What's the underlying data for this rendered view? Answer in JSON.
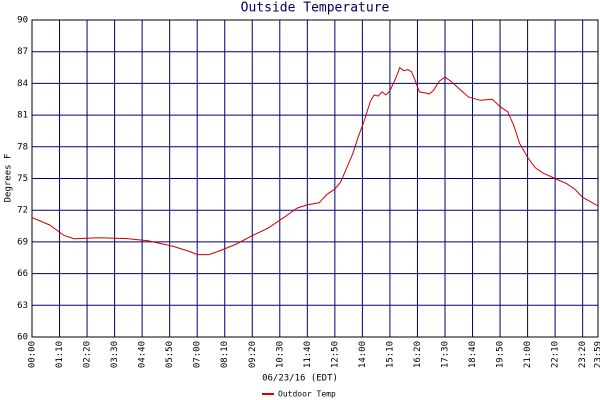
{
  "chart_data": {
    "type": "line",
    "title": "Outside Temperature",
    "x_label": "06/23/16 (EDT)",
    "y_label": "Degrees F",
    "x": [
      0,
      45,
      82,
      107,
      170,
      245,
      295,
      357,
      400,
      420,
      450,
      480,
      520,
      560,
      600,
      640,
      674,
      700,
      730,
      750,
      770,
      785,
      800,
      815,
      830,
      845,
      860,
      870,
      880,
      890,
      900,
      910,
      925,
      935,
      945,
      955,
      965,
      975,
      985,
      1000,
      1010,
      1020,
      1035,
      1050,
      1065,
      1080,
      1095,
      1110,
      1140,
      1170,
      1190,
      1210,
      1225,
      1240,
      1260,
      1280,
      1300,
      1330,
      1360,
      1380,
      1400,
      1420,
      1439
    ],
    "series": [
      {
        "name": "Outdoor Temp",
        "color": "#cc0000",
        "values": [
          71.3,
          70.6,
          69.6,
          69.3,
          69.4,
          69.3,
          69.1,
          68.6,
          68.1,
          67.8,
          67.8,
          68.2,
          68.8,
          69.6,
          70.3,
          71.3,
          72.2,
          72.5,
          72.7,
          73.5,
          74.0,
          74.7,
          76.0,
          77.3,
          79.0,
          80.5,
          82.3,
          82.9,
          82.8,
          83.2,
          82.9,
          83.3,
          84.5,
          85.5,
          85.2,
          85.3,
          85.1,
          84.2,
          83.2,
          83.1,
          83.0,
          83.3,
          84.2,
          84.6,
          84.2,
          83.7,
          83.2,
          82.7,
          82.4,
          82.5,
          81.8,
          81.3,
          80.0,
          78.3,
          77.0,
          76.0,
          75.5,
          75.0,
          74.5,
          74.0,
          73.2,
          72.8,
          72.4
        ]
      }
    ],
    "xlim": [
      0,
      1439
    ],
    "xticks": [
      {
        "value": 0,
        "label": "00:00"
      },
      {
        "value": 70,
        "label": "01:10"
      },
      {
        "value": 140,
        "label": "02:20"
      },
      {
        "value": 210,
        "label": "03:30"
      },
      {
        "value": 280,
        "label": "04:40"
      },
      {
        "value": 350,
        "label": "05:50"
      },
      {
        "value": 420,
        "label": "07:00"
      },
      {
        "value": 490,
        "label": "08:10"
      },
      {
        "value": 560,
        "label": "09:20"
      },
      {
        "value": 630,
        "label": "10:30"
      },
      {
        "value": 700,
        "label": "11:40"
      },
      {
        "value": 770,
        "label": "12:50"
      },
      {
        "value": 840,
        "label": "14:00"
      },
      {
        "value": 910,
        "label": "15:10"
      },
      {
        "value": 980,
        "label": "16:20"
      },
      {
        "value": 1050,
        "label": "17:30"
      },
      {
        "value": 1120,
        "label": "18:40"
      },
      {
        "value": 1190,
        "label": "19:50"
      },
      {
        "value": 1260,
        "label": "21:00"
      },
      {
        "value": 1330,
        "label": "22:10"
      },
      {
        "value": 1400,
        "label": "23:20"
      },
      {
        "value": 1439,
        "label": "23:59"
      }
    ],
    "ylim": [
      60,
      90
    ],
    "yticks": [
      60,
      63,
      66,
      69,
      72,
      75,
      78,
      81,
      84,
      87,
      90
    ],
    "grid": true,
    "grid_color": "#000070",
    "legend": "bottom-left"
  }
}
